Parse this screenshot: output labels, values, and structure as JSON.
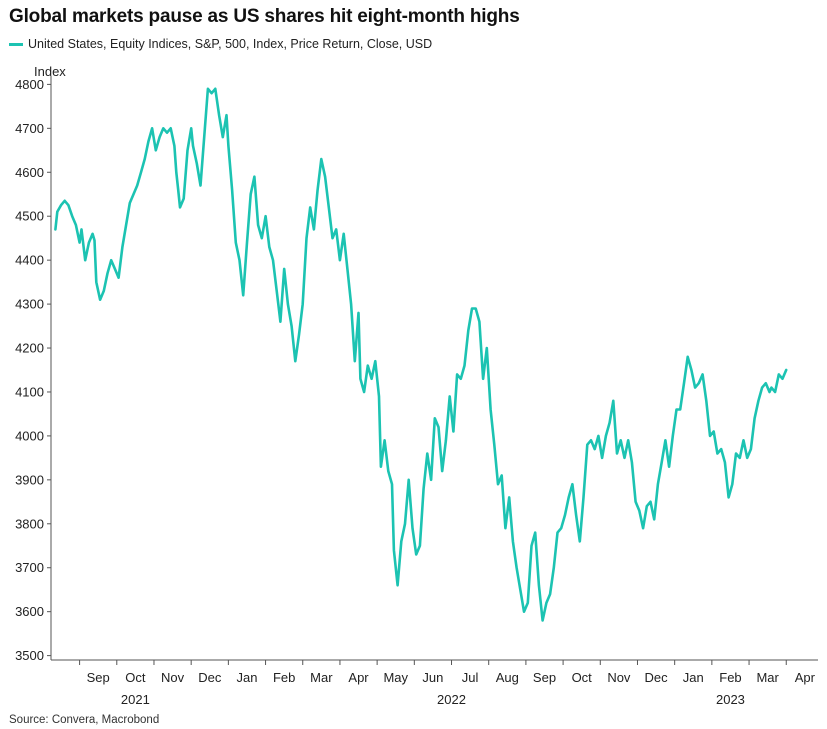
{
  "chart_data": {
    "type": "line",
    "title": "Global markets pause as US shares hit eight-month highs",
    "ylabel": "Index",
    "xlabel": "",
    "source": "Source: Convera, Macrobond",
    "ylim": [
      3490,
      4810
    ],
    "yticks": [
      3500,
      3600,
      3700,
      3800,
      3900,
      4000,
      4100,
      4200,
      4300,
      4400,
      4500,
      4600,
      4700,
      4800
    ],
    "x_range_months": [
      0,
      20.3
    ],
    "x_start": "2021-08-01",
    "month_labels": [
      {
        "label": "Sep",
        "m": 1
      },
      {
        "label": "Oct",
        "m": 2
      },
      {
        "label": "Nov",
        "m": 3
      },
      {
        "label": "Dec",
        "m": 4
      },
      {
        "label": "Jan",
        "m": 5
      },
      {
        "label": "Feb",
        "m": 6
      },
      {
        "label": "Mar",
        "m": 7
      },
      {
        "label": "Apr",
        "m": 8
      },
      {
        "label": "May",
        "m": 9
      },
      {
        "label": "Jun",
        "m": 10
      },
      {
        "label": "Jul",
        "m": 11
      },
      {
        "label": "Aug",
        "m": 12
      },
      {
        "label": "Sep",
        "m": 13
      },
      {
        "label": "Oct",
        "m": 14
      },
      {
        "label": "Nov",
        "m": 15
      },
      {
        "label": "Dec",
        "m": 16
      },
      {
        "label": "Jan",
        "m": 17
      },
      {
        "label": "Feb",
        "m": 18
      },
      {
        "label": "Mar",
        "m": 19
      },
      {
        "label": "Apr",
        "m": 20
      }
    ],
    "year_labels": [
      {
        "label": "2021",
        "m": 2
      },
      {
        "label": "2022",
        "m": 10.5
      },
      {
        "label": "2023",
        "m": 18
      }
    ],
    "series": [
      {
        "name": "United States, Equity Indices, S&P, 500, Index, Price Return, Close, USD",
        "color": "#1CC3B2",
        "points": [
          [
            -0.15,
            4470
          ],
          [
            -0.1,
            4510
          ],
          [
            0.0,
            4525
          ],
          [
            0.1,
            4535
          ],
          [
            0.2,
            4525
          ],
          [
            0.3,
            4500
          ],
          [
            0.4,
            4480
          ],
          [
            0.5,
            4440
          ],
          [
            0.55,
            4470
          ],
          [
            0.65,
            4400
          ],
          [
            0.75,
            4440
          ],
          [
            0.85,
            4460
          ],
          [
            0.9,
            4445
          ],
          [
            0.95,
            4350
          ],
          [
            1.05,
            4310
          ],
          [
            1.15,
            4330
          ],
          [
            1.25,
            4370
          ],
          [
            1.35,
            4400
          ],
          [
            1.45,
            4380
          ],
          [
            1.55,
            4360
          ],
          [
            1.65,
            4430
          ],
          [
            1.75,
            4480
          ],
          [
            1.85,
            4530
          ],
          [
            1.95,
            4550
          ],
          [
            2.05,
            4570
          ],
          [
            2.15,
            4600
          ],
          [
            2.25,
            4630
          ],
          [
            2.35,
            4670
          ],
          [
            2.45,
            4700
          ],
          [
            2.55,
            4650
          ],
          [
            2.65,
            4680
          ],
          [
            2.75,
            4700
          ],
          [
            2.85,
            4690
          ],
          [
            2.95,
            4700
          ],
          [
            3.05,
            4660
          ],
          [
            3.1,
            4600
          ],
          [
            3.15,
            4560
          ],
          [
            3.2,
            4520
          ],
          [
            3.3,
            4540
          ],
          [
            3.4,
            4650
          ],
          [
            3.5,
            4700
          ],
          [
            3.55,
            4660
          ],
          [
            3.65,
            4620
          ],
          [
            3.75,
            4570
          ],
          [
            3.85,
            4680
          ],
          [
            3.95,
            4790
          ],
          [
            4.05,
            4780
          ],
          [
            4.15,
            4790
          ],
          [
            4.25,
            4730
          ],
          [
            4.35,
            4680
          ],
          [
            4.45,
            4730
          ],
          [
            4.5,
            4660
          ],
          [
            4.6,
            4560
          ],
          [
            4.7,
            4440
          ],
          [
            4.8,
            4400
          ],
          [
            4.9,
            4320
          ],
          [
            5.0,
            4440
          ],
          [
            5.1,
            4550
          ],
          [
            5.2,
            4590
          ],
          [
            5.3,
            4480
          ],
          [
            5.4,
            4450
          ],
          [
            5.5,
            4500
          ],
          [
            5.6,
            4430
          ],
          [
            5.7,
            4400
          ],
          [
            5.8,
            4330
          ],
          [
            5.9,
            4260
          ],
          [
            6.0,
            4380
          ],
          [
            6.1,
            4300
          ],
          [
            6.2,
            4250
          ],
          [
            6.3,
            4170
          ],
          [
            6.4,
            4230
          ],
          [
            6.5,
            4300
          ],
          [
            6.6,
            4450
          ],
          [
            6.7,
            4520
          ],
          [
            6.8,
            4470
          ],
          [
            6.9,
            4560
          ],
          [
            7.0,
            4630
          ],
          [
            7.1,
            4590
          ],
          [
            7.2,
            4520
          ],
          [
            7.3,
            4450
          ],
          [
            7.4,
            4470
          ],
          [
            7.5,
            4400
          ],
          [
            7.6,
            4460
          ],
          [
            7.7,
            4380
          ],
          [
            7.8,
            4300
          ],
          [
            7.9,
            4170
          ],
          [
            8.0,
            4280
          ],
          [
            8.05,
            4130
          ],
          [
            8.15,
            4100
          ],
          [
            8.25,
            4160
          ],
          [
            8.35,
            4130
          ],
          [
            8.45,
            4170
          ],
          [
            8.55,
            4090
          ],
          [
            8.6,
            3930
          ],
          [
            8.7,
            3990
          ],
          [
            8.8,
            3920
          ],
          [
            8.9,
            3890
          ],
          [
            8.95,
            3740
          ],
          [
            9.05,
            3660
          ],
          [
            9.15,
            3760
          ],
          [
            9.25,
            3800
          ],
          [
            9.35,
            3900
          ],
          [
            9.45,
            3790
          ],
          [
            9.55,
            3730
          ],
          [
            9.65,
            3750
          ],
          [
            9.75,
            3880
          ],
          [
            9.85,
            3960
          ],
          [
            9.95,
            3900
          ],
          [
            10.05,
            4040
          ],
          [
            10.15,
            4020
          ],
          [
            10.25,
            3920
          ],
          [
            10.35,
            3990
          ],
          [
            10.45,
            4090
          ],
          [
            10.55,
            4010
          ],
          [
            10.65,
            4140
          ],
          [
            10.75,
            4130
          ],
          [
            10.85,
            4160
          ],
          [
            10.95,
            4240
          ],
          [
            11.05,
            4290
          ],
          [
            11.15,
            4290
          ],
          [
            11.25,
            4260
          ],
          [
            11.35,
            4130
          ],
          [
            11.45,
            4200
          ],
          [
            11.55,
            4060
          ],
          [
            11.65,
            3980
          ],
          [
            11.75,
            3890
          ],
          [
            11.85,
            3910
          ],
          [
            11.95,
            3790
          ],
          [
            12.05,
            3860
          ],
          [
            12.15,
            3760
          ],
          [
            12.25,
            3700
          ],
          [
            12.35,
            3650
          ],
          [
            12.45,
            3600
          ],
          [
            12.55,
            3620
          ],
          [
            12.65,
            3750
          ],
          [
            12.75,
            3780
          ],
          [
            12.85,
            3660
          ],
          [
            12.95,
            3580
          ],
          [
            13.05,
            3620
          ],
          [
            13.15,
            3640
          ],
          [
            13.25,
            3700
          ],
          [
            13.35,
            3780
          ],
          [
            13.45,
            3790
          ],
          [
            13.55,
            3820
          ],
          [
            13.65,
            3860
          ],
          [
            13.75,
            3890
          ],
          [
            13.85,
            3820
          ],
          [
            13.95,
            3760
          ],
          [
            14.05,
            3860
          ],
          [
            14.15,
            3980
          ],
          [
            14.25,
            3990
          ],
          [
            14.35,
            3970
          ],
          [
            14.45,
            4000
          ],
          [
            14.55,
            3950
          ],
          [
            14.65,
            4000
          ],
          [
            14.75,
            4030
          ],
          [
            14.85,
            4080
          ],
          [
            14.95,
            3960
          ],
          [
            15.05,
            3990
          ],
          [
            15.15,
            3950
          ],
          [
            15.25,
            3990
          ],
          [
            15.35,
            3940
          ],
          [
            15.45,
            3850
          ],
          [
            15.55,
            3830
          ],
          [
            15.65,
            3790
          ],
          [
            15.75,
            3840
          ],
          [
            15.85,
            3850
          ],
          [
            15.95,
            3810
          ],
          [
            16.05,
            3890
          ],
          [
            16.15,
            3940
          ],
          [
            16.25,
            3990
          ],
          [
            16.35,
            3930
          ],
          [
            16.45,
            4000
          ],
          [
            16.55,
            4060
          ],
          [
            16.65,
            4060
          ],
          [
            16.75,
            4120
          ],
          [
            16.85,
            4180
          ],
          [
            16.95,
            4150
          ],
          [
            17.05,
            4110
          ],
          [
            17.15,
            4120
          ],
          [
            17.25,
            4140
          ],
          [
            17.35,
            4080
          ],
          [
            17.45,
            4000
          ],
          [
            17.55,
            4010
          ],
          [
            17.65,
            3960
          ],
          [
            17.75,
            3970
          ],
          [
            17.85,
            3940
          ],
          [
            17.95,
            3860
          ],
          [
            18.05,
            3890
          ],
          [
            18.15,
            3960
          ],
          [
            18.25,
            3950
          ],
          [
            18.35,
            3990
          ],
          [
            18.45,
            3950
          ],
          [
            18.55,
            3970
          ],
          [
            18.65,
            4040
          ],
          [
            18.75,
            4080
          ],
          [
            18.85,
            4110
          ],
          [
            18.95,
            4120
          ],
          [
            19.05,
            4100
          ],
          [
            19.1,
            4110
          ],
          [
            19.2,
            4100
          ],
          [
            19.3,
            4140
          ],
          [
            19.4,
            4130
          ],
          [
            19.5,
            4150
          ]
        ]
      }
    ]
  }
}
